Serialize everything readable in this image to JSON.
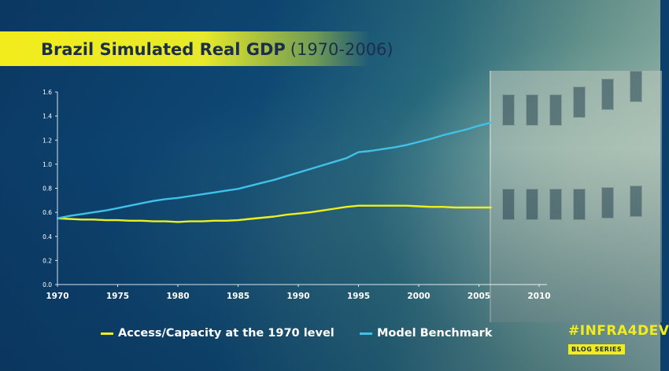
{
  "header": {
    "title_main": "Brazil Simulated Real GDP",
    "title_sub": "(1970-2006)"
  },
  "chart_data": {
    "type": "line",
    "title": "Brazil Simulated Real GDP (1970-2006)",
    "xlabel": "",
    "ylabel": "",
    "xlim": [
      1970,
      2010
    ],
    "ylim": [
      0.0,
      1.6
    ],
    "xticks": [
      1970,
      1975,
      1980,
      1985,
      1990,
      1995,
      2000,
      2005,
      2010
    ],
    "yticks": [
      "0.0",
      "0.2",
      "0.4",
      "0.6",
      "0.8",
      "1.0",
      "1.2",
      "1.4",
      "1.6"
    ],
    "grid": false,
    "legend_position": "bottom",
    "x": [
      1970,
      1971,
      1972,
      1973,
      1974,
      1975,
      1976,
      1977,
      1978,
      1979,
      1980,
      1981,
      1982,
      1983,
      1984,
      1985,
      1986,
      1987,
      1988,
      1989,
      1990,
      1991,
      1992,
      1993,
      1994,
      1995,
      1996,
      1997,
      1998,
      1999,
      2000,
      2001,
      2002,
      2003,
      2004,
      2005,
      2006
    ],
    "series": [
      {
        "name": "Access/Capacity at the 1970 level",
        "color": "#eef01e",
        "values": [
          0.55,
          0.545,
          0.54,
          0.54,
          0.535,
          0.535,
          0.53,
          0.53,
          0.525,
          0.525,
          0.52,
          0.525,
          0.525,
          0.53,
          0.53,
          0.535,
          0.545,
          0.555,
          0.565,
          0.58,
          0.59,
          0.6,
          0.615,
          0.63,
          0.645,
          0.655,
          0.655,
          0.655,
          0.655,
          0.655,
          0.65,
          0.645,
          0.645,
          0.64,
          0.64,
          0.64,
          0.64
        ]
      },
      {
        "name": "Model Benchmark",
        "color": "#3fc1e8",
        "values": [
          0.55,
          0.57,
          0.585,
          0.6,
          0.615,
          0.635,
          0.655,
          0.675,
          0.695,
          0.71,
          0.72,
          0.735,
          0.75,
          0.765,
          0.78,
          0.795,
          0.82,
          0.845,
          0.87,
          0.9,
          0.93,
          0.96,
          0.99,
          1.02,
          1.05,
          1.1,
          1.11,
          1.125,
          1.14,
          1.16,
          1.185,
          1.21,
          1.24,
          1.265,
          1.29,
          1.32,
          1.345
        ]
      }
    ]
  },
  "legend": [
    {
      "label": "Access/Capacity at the 1970 level",
      "color": "#eef01e"
    },
    {
      "label": "Model Benchmark",
      "color": "#3fc1e8"
    }
  ],
  "branding": {
    "tag": "#INFRA4DEV",
    "series": "BLOG SERIES"
  }
}
